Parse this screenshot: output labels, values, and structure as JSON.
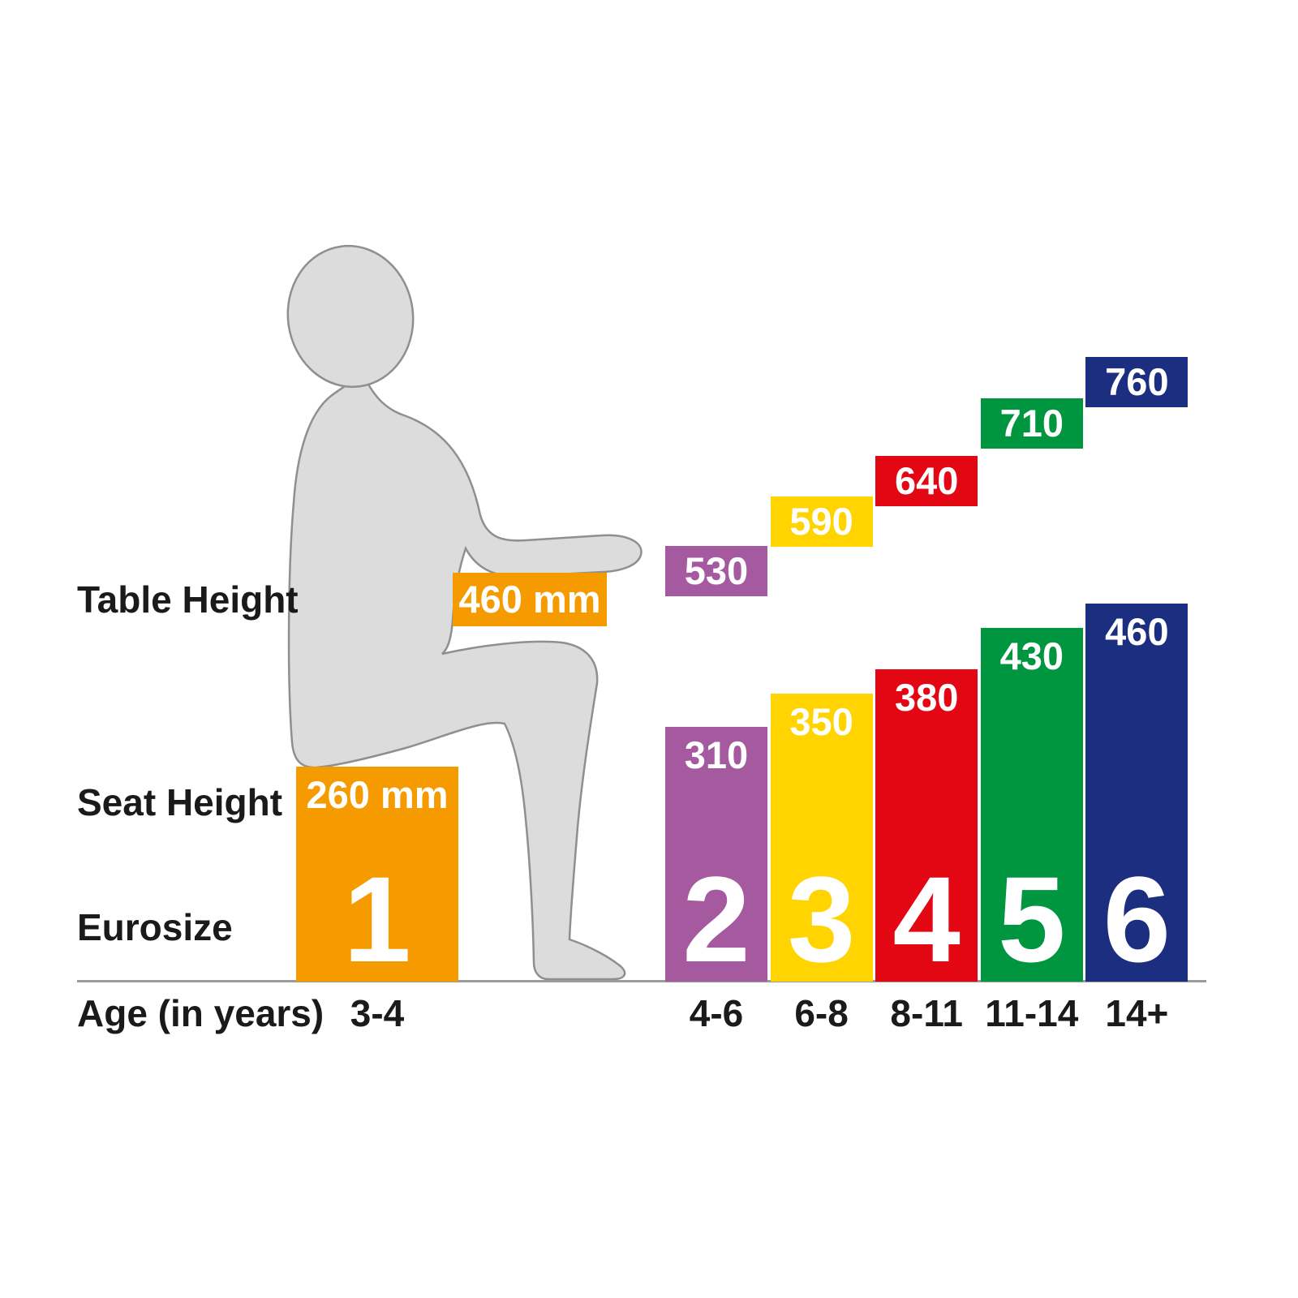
{
  "labels": {
    "table_height": "Table Height",
    "seat_height": "Seat Height",
    "eurosize": "Eurosize",
    "age": "Age (in years)"
  },
  "chart_data": {
    "type": "bar",
    "title": "",
    "unit": "mm",
    "axis_color": "#9b9b9b",
    "figure_fill": "#dcdcdc",
    "figure_stroke": "#8f8f8f",
    "row_labels": [
      "Table Height",
      "Seat Height",
      "Eurosize",
      "Age (in years)"
    ],
    "series": [
      {
        "name": "Table Height",
        "values": [
          460,
          530,
          590,
          640,
          710,
          760
        ]
      },
      {
        "name": "Seat Height",
        "values": [
          260,
          310,
          350,
          380,
          430,
          460
        ]
      }
    ],
    "columns": [
      {
        "eurosize": "1",
        "age": "3-4",
        "table_mm": 460,
        "seat_mm": 260,
        "table_text": "460 mm",
        "seat_text": "260 mm",
        "color": "#F59B00",
        "figure": true
      },
      {
        "eurosize": "2",
        "age": "4-6",
        "table_mm": 530,
        "seat_mm": 310,
        "table_text": "530",
        "seat_text": "310",
        "color": "#A55AA0"
      },
      {
        "eurosize": "3",
        "age": "6-8",
        "table_mm": 590,
        "seat_mm": 350,
        "table_text": "590",
        "seat_text": "350",
        "color": "#FFD400"
      },
      {
        "eurosize": "4",
        "age": "8-11",
        "table_mm": 640,
        "seat_mm": 380,
        "table_text": "640",
        "seat_text": "380",
        "color": "#E30613"
      },
      {
        "eurosize": "5",
        "age": "11-14",
        "table_mm": 710,
        "seat_mm": 430,
        "table_text": "710",
        "seat_text": "430",
        "color": "#009640"
      },
      {
        "eurosize": "6",
        "age": "14+",
        "table_mm": 760,
        "seat_mm": 460,
        "table_text": "760",
        "seat_text": "460",
        "color": "#1C2E7F"
      }
    ]
  }
}
